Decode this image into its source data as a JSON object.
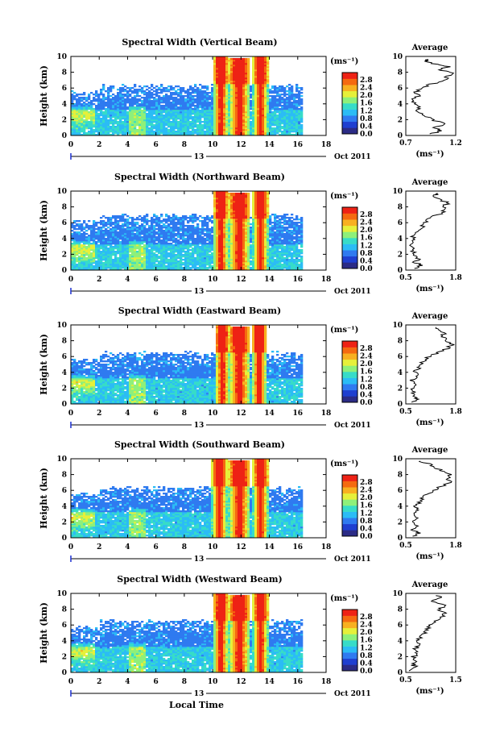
{
  "xlabel_bottom": "Local Time",
  "date_day": "13",
  "date_month_year": "Oct 2011",
  "ylabel": "Height (km)",
  "unit_label": "(ms⁻¹)",
  "average_title": "Average",
  "colorbar_ticks": [
    "2.8",
    "2.4",
    "2.0",
    "1.6",
    "1.2",
    "0.8",
    "0.4",
    "0.0"
  ],
  "colors": {
    "background": "#1f3fd0",
    "colormap": [
      "#2b2b86",
      "#1f3fd0",
      "#2f7af0",
      "#2bbcf5",
      "#37dcc8",
      "#8ef07a",
      "#e6f03a",
      "#f8b020",
      "#f56a10",
      "#ee2215"
    ]
  },
  "chart_data": [
    {
      "type": "heatmap",
      "title": "Spectral Width (Vertical Beam)",
      "xlabel": "",
      "ylabel": "Height (km)",
      "xlim": [
        0,
        18
      ],
      "ylim": [
        0,
        10
      ],
      "xticks": [
        0,
        2,
        4,
        6,
        8,
        10,
        12,
        14,
        16,
        18
      ],
      "yticks": [
        0,
        2,
        4,
        6,
        8,
        10
      ],
      "colorbar": {
        "label": "(ms⁻¹)",
        "range": [
          0.0,
          2.8
        ]
      },
      "features": {
        "top_km": 6.2,
        "hot_cores_hr": [
          10.5,
          11.8,
          13.3
        ]
      },
      "average": {
        "title": "Average",
        "xlabel": "(ms⁻¹)",
        "xlim": [
          0.7,
          1.2
        ],
        "xticks": [
          0.7,
          1.2
        ],
        "ylim": [
          0,
          10
        ],
        "profile": [
          [
            0.2,
            0.95
          ],
          [
            0.6,
            1.05
          ],
          [
            1.0,
            0.98
          ],
          [
            1.5,
            1.1
          ],
          [
            2.0,
            0.96
          ],
          [
            2.5,
            0.9
          ],
          [
            3.0,
            0.8
          ],
          [
            3.5,
            0.84
          ],
          [
            4.0,
            0.8
          ],
          [
            4.5,
            0.78
          ],
          [
            5.0,
            0.82
          ],
          [
            5.5,
            0.8
          ],
          [
            6.0,
            0.86
          ],
          [
            6.5,
            0.96
          ],
          [
            7.0,
            1.08
          ],
          [
            7.5,
            1.12
          ],
          [
            8.0,
            1.16
          ],
          [
            8.3,
            1.05
          ],
          [
            8.7,
            1.12
          ],
          [
            9.0,
            1.0
          ],
          [
            9.4,
            0.88
          ],
          [
            9.7,
            0.96
          ]
        ]
      }
    },
    {
      "type": "heatmap",
      "title": "Spectral Width (Northward Beam)",
      "xlabel": "",
      "ylabel": "Height (km)",
      "xlim": [
        0,
        18
      ],
      "ylim": [
        0,
        10
      ],
      "xticks": [
        0,
        2,
        4,
        6,
        8,
        10,
        12,
        14,
        16,
        18
      ],
      "yticks": [
        0,
        2,
        4,
        6,
        8,
        10
      ],
      "colorbar": {
        "label": "(ms⁻¹)",
        "range": [
          0.0,
          2.8
        ]
      },
      "features": {
        "top_km": 6.8,
        "hot_cores_hr": [
          10.5,
          11.8,
          13.3
        ]
      },
      "average": {
        "title": "Average",
        "xlabel": "(ms⁻¹)",
        "xlim": [
          0.5,
          1.8
        ],
        "xticks": [
          0.5,
          1.8
        ],
        "ylim": [
          0,
          10
        ],
        "profile": [
          [
            0.2,
            0.8
          ],
          [
            0.6,
            0.9
          ],
          [
            1.0,
            0.75
          ],
          [
            1.5,
            0.82
          ],
          [
            2.0,
            0.72
          ],
          [
            2.5,
            0.7
          ],
          [
            3.0,
            0.66
          ],
          [
            3.5,
            0.74
          ],
          [
            4.0,
            0.68
          ],
          [
            4.5,
            0.72
          ],
          [
            5.0,
            0.8
          ],
          [
            5.5,
            0.92
          ],
          [
            6.0,
            1.0
          ],
          [
            6.5,
            1.05
          ],
          [
            7.0,
            1.35
          ],
          [
            7.5,
            1.5
          ],
          [
            8.0,
            1.45
          ],
          [
            8.5,
            1.6
          ],
          [
            9.0,
            1.35
          ],
          [
            9.5,
            1.25
          ],
          [
            9.8,
            1.4
          ]
        ]
      }
    },
    {
      "type": "heatmap",
      "title": "Spectral Width (Eastward Beam)",
      "xlabel": "",
      "ylabel": "Height (km)",
      "xlim": [
        0,
        18
      ],
      "ylim": [
        0,
        10
      ],
      "xticks": [
        0,
        2,
        4,
        6,
        8,
        10,
        12,
        14,
        16,
        18
      ],
      "yticks": [
        0,
        2,
        4,
        6,
        8,
        10
      ],
      "colorbar": {
        "label": "(ms⁻¹)",
        "range": [
          0.0,
          2.8
        ]
      },
      "features": {
        "top_km": 6.3,
        "hot_cores_hr": [
          10.6,
          11.8,
          13.2
        ]
      },
      "average": {
        "title": "Average",
        "xlabel": "(ms⁻¹)",
        "xlim": [
          0.5,
          1.8
        ],
        "xticks": [
          0.5,
          1.8
        ],
        "ylim": [
          0,
          10
        ],
        "profile": [
          [
            0.2,
            0.62
          ],
          [
            0.6,
            0.78
          ],
          [
            1.0,
            0.66
          ],
          [
            1.5,
            0.7
          ],
          [
            2.0,
            0.64
          ],
          [
            2.5,
            0.72
          ],
          [
            3.0,
            0.68
          ],
          [
            3.5,
            0.8
          ],
          [
            4.0,
            0.72
          ],
          [
            4.5,
            0.84
          ],
          [
            5.0,
            0.9
          ],
          [
            5.5,
            1.0
          ],
          [
            6.0,
            1.1
          ],
          [
            6.5,
            1.35
          ],
          [
            7.0,
            1.55
          ],
          [
            7.5,
            1.7
          ],
          [
            8.0,
            1.6
          ],
          [
            8.5,
            1.45
          ],
          [
            9.0,
            1.5
          ],
          [
            9.5,
            1.3
          ],
          [
            9.8,
            1.2
          ]
        ]
      }
    },
    {
      "type": "heatmap",
      "title": "Spectral Width (Southward Beam)",
      "xlabel": "",
      "ylabel": "Height (km)",
      "xlim": [
        0,
        18
      ],
      "ylim": [
        0,
        10
      ],
      "xticks": [
        0,
        2,
        4,
        6,
        8,
        10,
        12,
        14,
        16,
        18
      ],
      "yticks": [
        0,
        2,
        4,
        6,
        8,
        10
      ],
      "colorbar": {
        "label": "(ms⁻¹)",
        "range": [
          0.0,
          2.8
        ]
      },
      "features": {
        "top_km": 6.2,
        "hot_cores_hr": [
          10.4,
          11.8,
          13.3
        ]
      },
      "average": {
        "title": "Average",
        "xlabel": "(ms⁻¹)",
        "xlim": [
          0.5,
          1.8
        ],
        "xticks": [
          0.5,
          1.8
        ],
        "ylim": [
          0,
          10
        ],
        "profile": [
          [
            0.2,
            0.7
          ],
          [
            0.6,
            0.82
          ],
          [
            1.0,
            0.66
          ],
          [
            1.5,
            0.8
          ],
          [
            2.0,
            0.68
          ],
          [
            2.5,
            0.74
          ],
          [
            3.0,
            0.7
          ],
          [
            3.5,
            0.85
          ],
          [
            4.0,
            0.76
          ],
          [
            4.5,
            0.88
          ],
          [
            5.0,
            0.92
          ],
          [
            5.5,
            1.05
          ],
          [
            6.0,
            1.2
          ],
          [
            6.5,
            1.4
          ],
          [
            7.0,
            1.65
          ],
          [
            7.5,
            1.55
          ],
          [
            8.0,
            1.7
          ],
          [
            8.5,
            1.4
          ],
          [
            9.0,
            1.25
          ],
          [
            9.5,
            1.0
          ],
          [
            9.8,
            0.8
          ]
        ]
      }
    },
    {
      "type": "heatmap",
      "title": "Spectral Width (Westward Beam)",
      "xlabel": "Local Time",
      "ylabel": "Height (km)",
      "xlim": [
        0,
        18
      ],
      "ylim": [
        0,
        10
      ],
      "xticks": [
        0,
        2,
        4,
        6,
        8,
        10,
        12,
        14,
        16,
        18
      ],
      "yticks": [
        0,
        2,
        4,
        6,
        8,
        10
      ],
      "colorbar": {
        "label": "(ms⁻¹)",
        "range": [
          0.0,
          2.8
        ]
      },
      "features": {
        "top_km": 6.4,
        "hot_cores_hr": [
          10.5,
          11.8,
          13.3
        ]
      },
      "average": {
        "title": "Average",
        "xlabel": "(ms⁻¹)",
        "xlim": [
          0.5,
          1.5
        ],
        "xticks": [
          0.5,
          1.5
        ],
        "ylim": [
          0,
          10
        ],
        "profile": [
          [
            0.2,
            0.62
          ],
          [
            0.6,
            0.72
          ],
          [
            1.0,
            0.64
          ],
          [
            1.5,
            0.7
          ],
          [
            2.0,
            0.66
          ],
          [
            2.5,
            0.72
          ],
          [
            3.0,
            0.68
          ],
          [
            3.5,
            0.78
          ],
          [
            4.0,
            0.72
          ],
          [
            4.5,
            0.8
          ],
          [
            5.0,
            0.86
          ],
          [
            5.5,
            0.92
          ],
          [
            6.0,
            1.0
          ],
          [
            6.5,
            1.1
          ],
          [
            7.0,
            1.2
          ],
          [
            7.5,
            1.3
          ],
          [
            8.0,
            1.15
          ],
          [
            8.5,
            1.3
          ],
          [
            9.0,
            1.05
          ],
          [
            9.5,
            1.2
          ],
          [
            9.8,
            1.1
          ]
        ]
      }
    }
  ]
}
